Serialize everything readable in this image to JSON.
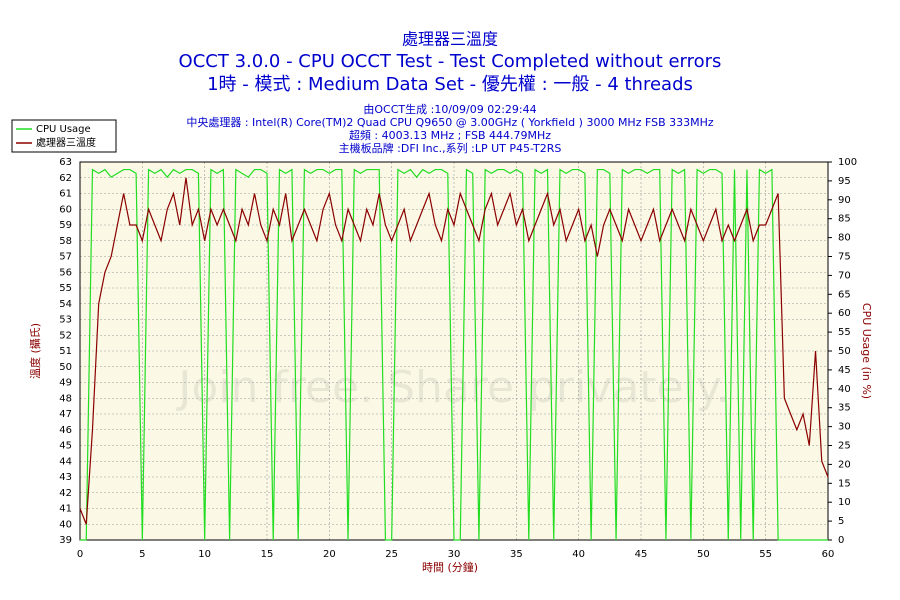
{
  "chart_data": {
    "type": "line",
    "title": "處理器三溫度",
    "subtitle": "OCCT 3.0.0 - CPU OCCT Test - Test Completed without errors",
    "subtitle2": "1時 - 模式 : Medium Data Set - 優先權 : 一般 - 4 threads",
    "info": [
      "由OCCT生成 :10/09/09 02:29:44",
      "中央處理器 : Intel(R) Core(TM)2 Quad CPU Q9650 @ 3.00GHz ( Yorkfield ) 3000 MHz FSB 333MHz",
      "超頻 : 4003.13 MHz ; FSB 444.79MHz",
      "主機板品牌 :DFI Inc.,系列 :LP UT P45-T2RS"
    ],
    "watermark": "Join free. Share privately.",
    "x_label": "時間 (分鐘)",
    "y_label": "溫度 (攝氏)",
    "y2_label": "CPU Usage (in %)",
    "x": [
      0,
      0.5,
      1,
      1.5,
      2,
      2.5,
      3,
      3.5,
      4,
      4.5,
      5,
      5.5,
      6,
      6.5,
      7,
      7.5,
      8,
      8.5,
      9,
      9.5,
      10,
      10.5,
      11,
      11.5,
      12,
      12.5,
      13,
      13.5,
      14,
      14.5,
      15,
      15.5,
      16,
      16.5,
      17,
      17.5,
      18,
      18.5,
      19,
      19.5,
      20,
      20.5,
      21,
      21.5,
      22,
      22.5,
      23,
      23.5,
      24,
      24.5,
      25,
      25.5,
      26,
      26.5,
      27,
      27.5,
      28,
      28.5,
      29,
      29.5,
      30,
      30.5,
      31,
      31.5,
      32,
      32.5,
      33,
      33.5,
      34,
      34.5,
      35,
      35.5,
      36,
      36.5,
      37,
      37.5,
      38,
      38.5,
      39,
      39.5,
      40,
      40.5,
      41,
      41.5,
      42,
      42.5,
      43,
      43.5,
      44,
      44.5,
      45,
      45.5,
      46,
      46.5,
      47,
      47.5,
      48,
      48.5,
      49,
      49.5,
      50,
      50.5,
      51,
      51.5,
      52,
      52.5,
      53,
      53.5,
      54,
      54.5,
      55,
      55.5,
      56,
      56.5,
      57,
      57.5,
      58,
      58.5,
      59,
      59.5,
      60
    ],
    "series": [
      {
        "name": "CPU Usage",
        "color": "#22dd22",
        "axis": "y2",
        "values": [
          0,
          0,
          98,
          97,
          98,
          96,
          97,
          98,
          98,
          97,
          0,
          98,
          97,
          98,
          96,
          98,
          97,
          98,
          98,
          97,
          0,
          98,
          97,
          98,
          0,
          98,
          97,
          96,
          98,
          98,
          97,
          0,
          98,
          97,
          98,
          0,
          98,
          97,
          98,
          98,
          97,
          98,
          98,
          0,
          98,
          97,
          98,
          98,
          98,
          0,
          0,
          98,
          97,
          98,
          96,
          98,
          97,
          98,
          98,
          97,
          0,
          0,
          98,
          97,
          0,
          98,
          97,
          98,
          98,
          97,
          98,
          97,
          0,
          98,
          97,
          98,
          0,
          98,
          97,
          98,
          98,
          97,
          0,
          98,
          98,
          97,
          0,
          98,
          97,
          98,
          98,
          97,
          98,
          98,
          0,
          98,
          97,
          98,
          0,
          98,
          97,
          98,
          98,
          97,
          0,
          98,
          0,
          98,
          0,
          98,
          97,
          98,
          0,
          0,
          0,
          0,
          0,
          0,
          0,
          0,
          0
        ]
      },
      {
        "name": "處理器三溫度",
        "color": "#8b0000",
        "values": [
          41,
          40,
          46,
          54,
          56,
          57,
          59,
          61,
          59,
          59,
          58,
          60,
          59,
          58,
          60,
          61,
          59,
          62,
          59,
          60,
          58,
          60,
          59,
          60,
          59,
          58,
          60,
          59,
          61,
          59,
          58,
          60,
          59,
          61,
          58,
          59,
          60,
          59,
          58,
          60,
          61,
          59,
          58,
          60,
          59,
          58,
          60,
          59,
          61,
          59,
          58,
          59,
          60,
          58,
          59,
          60,
          61,
          59,
          58,
          60,
          59,
          61,
          60,
          59,
          58,
          60,
          61,
          59,
          60,
          61,
          59,
          60,
          58,
          59,
          60,
          61,
          59,
          60,
          58,
          59,
          60,
          58,
          59,
          57,
          59,
          60,
          59,
          58,
          60,
          59,
          58,
          59,
          60,
          58,
          59,
          60,
          59,
          58,
          60,
          59,
          58,
          59,
          60,
          58,
          59,
          58,
          59,
          60,
          58,
          59,
          59,
          60,
          61,
          48,
          47,
          46,
          47,
          45,
          51,
          44,
          43
        ]
      }
    ],
    "xlim": [
      0,
      60
    ],
    "xticks": [
      0,
      5,
      10,
      15,
      20,
      25,
      30,
      35,
      40,
      45,
      50,
      55,
      60
    ],
    "ylim": [
      39,
      63
    ],
    "yticks": [
      39,
      40,
      41,
      42,
      43,
      44,
      45,
      46,
      47,
      48,
      49,
      50,
      51,
      52,
      53,
      54,
      55,
      56,
      57,
      58,
      59,
      60,
      61,
      62,
      63
    ],
    "y2lim": [
      0,
      100
    ],
    "y2ticks": [
      0,
      5,
      10,
      15,
      20,
      25,
      30,
      35,
      40,
      45,
      50,
      55,
      60,
      65,
      70,
      75,
      80,
      85,
      90,
      95,
      100
    ],
    "grid": true,
    "legend": "top-left",
    "plot_background": "#fbf9e6"
  }
}
